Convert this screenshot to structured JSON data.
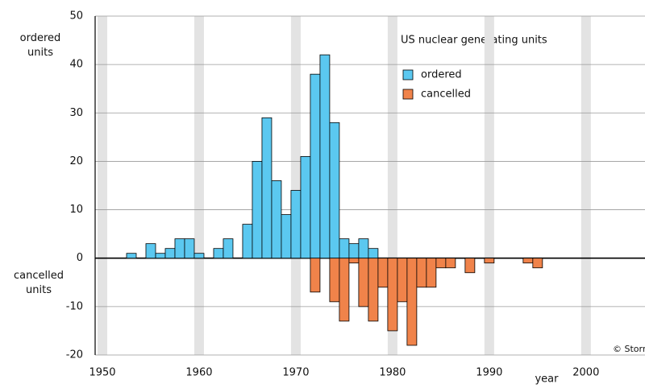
{
  "chart_data": {
    "type": "bar",
    "title": "US nuclear generating units",
    "y_label_top": "ordered units",
    "y_label_bottom": "cancelled units",
    "x_label": "year",
    "credit": "© Storm",
    "x": [
      1953,
      1954,
      1955,
      1956,
      1957,
      1958,
      1959,
      1960,
      1961,
      1962,
      1963,
      1964,
      1965,
      1966,
      1967,
      1968,
      1969,
      1970,
      1971,
      1972,
      1973,
      1974,
      1975,
      1976,
      1977,
      1978,
      1979,
      1980,
      1981,
      1982,
      1983,
      1984,
      1985,
      1986,
      1987,
      1988,
      1989,
      1990,
      1991,
      1992,
      1993,
      1994,
      1995
    ],
    "series": [
      {
        "name": "ordered",
        "color": "#5bc8f0",
        "values": [
          1,
          0,
          3,
          1,
          2,
          4,
          4,
          1,
          0,
          2,
          4,
          0,
          7,
          20,
          29,
          16,
          9,
          14,
          21,
          38,
          42,
          28,
          4,
          3,
          4,
          2,
          0,
          0,
          0,
          0,
          0,
          0,
          0,
          0,
          0,
          0,
          0,
          0,
          0,
          0,
          0,
          0,
          0
        ]
      },
      {
        "name": "cancelled",
        "color": "#f0834a",
        "values": [
          0,
          0,
          0,
          0,
          0,
          0,
          0,
          0,
          0,
          0,
          0,
          0,
          0,
          0,
          0,
          0,
          0,
          0,
          0,
          -7,
          0,
          -9,
          -13,
          -1,
          -10,
          -13,
          -6,
          -15,
          -9,
          -18,
          -6,
          -6,
          -2,
          -2,
          0,
          -3,
          0,
          -1,
          0,
          0,
          0,
          -1,
          -2
        ]
      }
    ],
    "xlim": [
      1949.75,
      2006.6
    ],
    "xticks": [
      1950,
      1960,
      1970,
      1980,
      1990,
      2000
    ],
    "ylim": [
      -20,
      50
    ],
    "yticks": [
      -20,
      -10,
      0,
      10,
      20,
      30,
      40,
      50
    ],
    "grid": true
  }
}
